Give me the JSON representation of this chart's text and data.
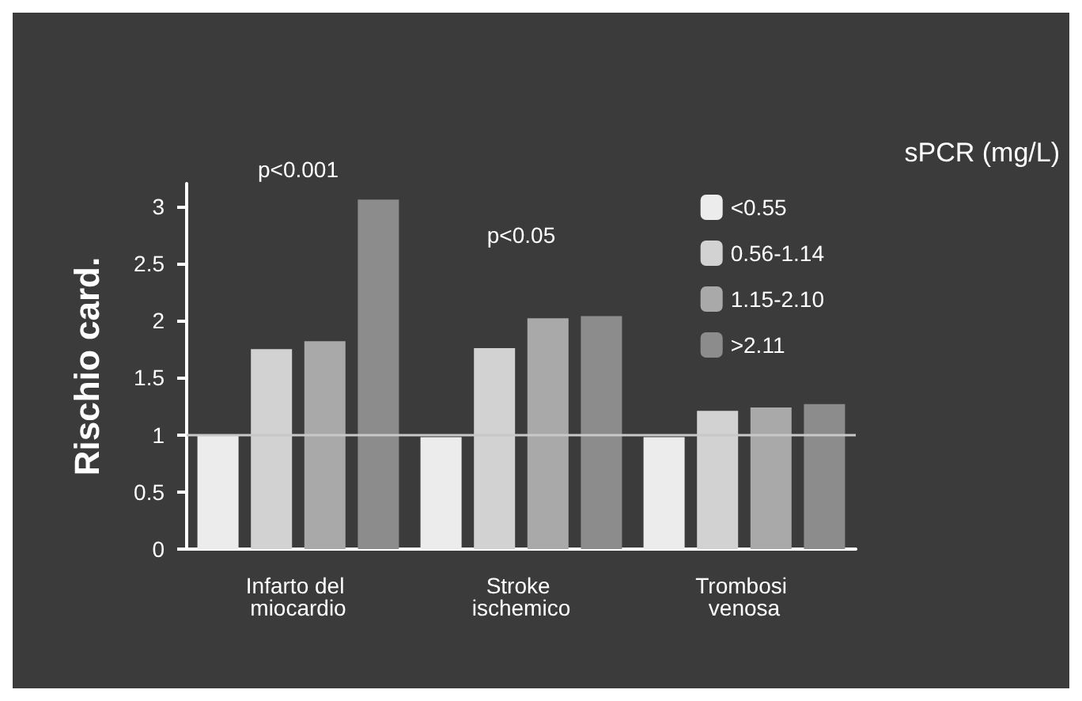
{
  "chart_data": {
    "type": "bar",
    "ylabel": "Rischio card.",
    "legend_title": "sPCR (mg/L)",
    "categories": [
      "Infarto del miocardio",
      "Stroke ischemico",
      "Trombosi venosa"
    ],
    "series": [
      {
        "name": "<0.55",
        "color": "#ececec",
        "values": [
          1.0,
          0.98,
          0.98
        ]
      },
      {
        "name": "0.56-1.14",
        "color": "#d2d2d2",
        "values": [
          1.75,
          1.76,
          1.21
        ]
      },
      {
        "name": "1.15-2.10",
        "color": "#a9a9a9",
        "values": [
          1.82,
          2.02,
          1.24
        ]
      },
      {
        "name": ">2.11",
        "color": "#8c8c8c",
        "values": [
          3.06,
          2.04,
          1.27
        ]
      }
    ],
    "ylim": [
      0,
      3.2
    ],
    "yticks": [
      0,
      0.5,
      1,
      1.5,
      2,
      2.5,
      3
    ],
    "grid": false,
    "legend": "top right",
    "ref_lines": [
      {
        "axis": "y",
        "value": 1,
        "color": "#c8c8c8"
      }
    ],
    "annotations": [
      "p<0.001",
      "p<0.05"
    ]
  }
}
